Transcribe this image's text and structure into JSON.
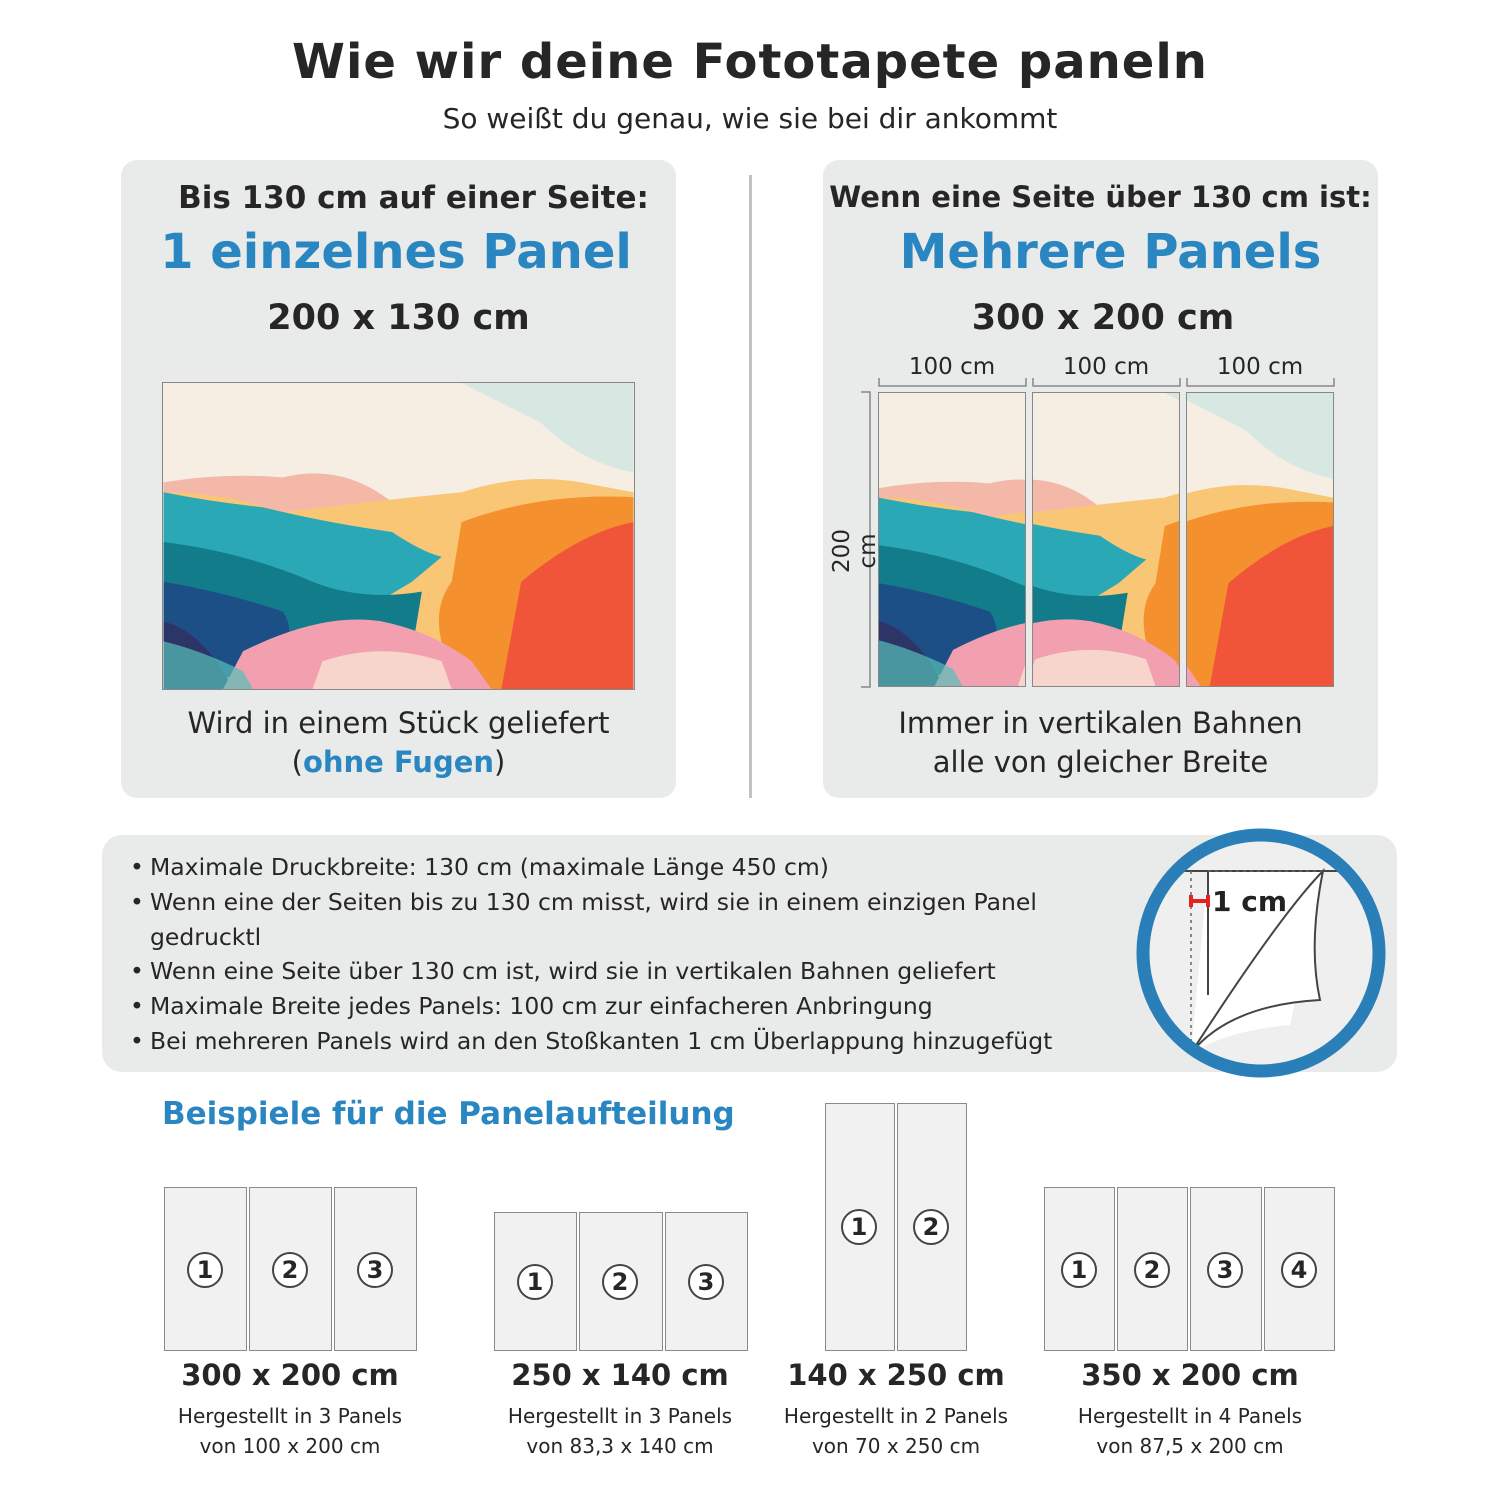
{
  "header": {
    "title": "Wie wir deine Fototapete paneln",
    "subtitle": "So weißt du genau, wie sie bei dir ankommt"
  },
  "left_card": {
    "heading": "Bis 130 cm auf einer Seite:",
    "highlight": "1 einzelnes Panel",
    "size": "200 x 130 cm",
    "desc_line1": "Wird in einem Stück geliefert",
    "desc_open": "(",
    "desc_highlight": "ohne Fugen",
    "desc_close": ")"
  },
  "right_card": {
    "heading": "Wenn eine Seite über 130 cm ist:",
    "highlight": "Mehrere Panels",
    "size": "300 x 200 cm",
    "panel_widths": [
      "100 cm",
      "100 cm",
      "100 cm"
    ],
    "height_label": "200 cm",
    "desc_line1": "Immer in vertikalen Bahnen",
    "desc_line2": "alle von gleicher Breite"
  },
  "info": {
    "bullets": [
      "Maximale Druckbreite: 130 cm (maximale Länge 450 cm)",
      "Wenn eine der Seiten bis zu 130 cm misst, wird sie in einem einzigen Panel gedrucktl",
      "Wenn eine Seite über 130 cm ist, wird sie in vertikalen Bahnen geliefert",
      "Maximale Breite jedes Panels: 100 cm zur einfacheren Anbringung",
      "Bei mehreren Panels wird an den Stoßkanten 1 cm Überlappung hinzugefügt"
    ],
    "overlap_label": "1 cm"
  },
  "examples": {
    "title": "Beispiele für die Panelaufteilung",
    "items": [
      {
        "size": "300 x 200 cm",
        "line1": "Hergestellt in 3 Panels",
        "line2": "von 100 x 200 cm",
        "panels": [
          "1",
          "2",
          "3"
        ]
      },
      {
        "size": "250 x 140 cm",
        "line1": "Hergestellt in 3 Panels",
        "line2": "von 83,3 x 140 cm",
        "panels": [
          "1",
          "2",
          "3"
        ]
      },
      {
        "size": "140 x 250 cm",
        "line1": "Hergestellt in 2 Panels",
        "line2": "von 70 x 250 cm",
        "panels": [
          "1",
          "2"
        ]
      },
      {
        "size": "350 x 200 cm",
        "line1": "Hergestellt in 4 Panels",
        "line2": "von 87,5 x 200 cm",
        "panels": [
          "1",
          "2",
          "3",
          "4"
        ]
      }
    ]
  },
  "colors": {
    "accent": "#2a86c0",
    "card": "#e9ebea",
    "ring": "#2a7fb8",
    "overlap_marker": "#e52222"
  }
}
